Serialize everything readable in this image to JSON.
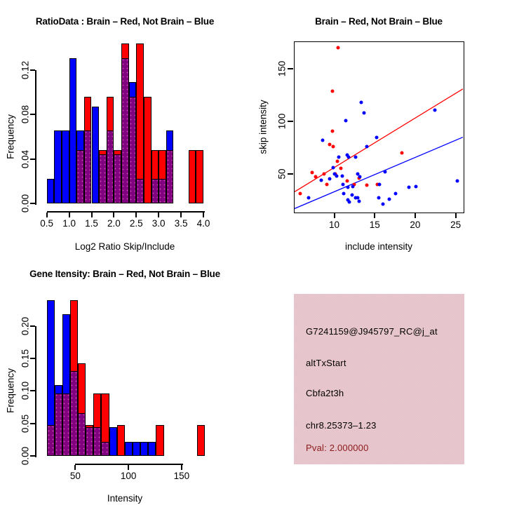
{
  "page": {
    "background": "#ffffff"
  },
  "colors": {
    "brain_red": "#ff0000",
    "not_brain_blue": "#0000ff",
    "overlap_purple": "#800080",
    "axis_black": "#000000",
    "info_box_pink": "#f1c7cf",
    "pval_dark_red": "#8b1a1a"
  },
  "chart_data": [
    {
      "id": "ratio-histogram",
      "type": "bar",
      "title": "RatioData : Brain – Red, Not Brain – Blue",
      "xlabel": "Log2 Ratio Skip/Include",
      "ylabel": "Frequency",
      "xlim": [
        0.5,
        4.0
      ],
      "ylim": [
        0,
        0.144
      ],
      "x_ticks": {
        "values": [
          0.5,
          1.0,
          1.5,
          2.0,
          2.5,
          3.0,
          3.5,
          4.0
        ],
        "labels": [
          "0.5",
          "1.0",
          "1.5",
          "2.0",
          "2.5",
          "3.0",
          "3.5",
          "4.0"
        ]
      },
      "y_ticks": {
        "values": [
          0,
          0.04,
          0.08,
          0.12
        ],
        "labels": [
          "0.00",
          "0.04",
          "0.08",
          "0.12"
        ]
      },
      "series_colors": {
        "brain": "#ff0000",
        "not_brain": "#0000ff",
        "overlap": "#800080"
      },
      "bars": [
        {
          "x0": 0.5,
          "x1": 0.667,
          "brain": 0.0,
          "not_brain": 0.022
        },
        {
          "x0": 0.667,
          "x1": 0.833,
          "brain": 0.0,
          "not_brain": 0.066
        },
        {
          "x0": 0.833,
          "x1": 1.0,
          "brain": 0.0,
          "not_brain": 0.066
        },
        {
          "x0": 1.0,
          "x1": 1.167,
          "brain": 0.0,
          "not_brain": 0.131
        },
        {
          "x0": 1.167,
          "x1": 1.333,
          "brain": 0.048,
          "not_brain": 0.066
        },
        {
          "x0": 1.333,
          "x1": 1.5,
          "brain": 0.096,
          "not_brain": 0.066
        },
        {
          "x0": 1.5,
          "x1": 1.667,
          "brain": 0.0,
          "not_brain": 0.087
        },
        {
          "x0": 1.667,
          "x1": 1.833,
          "brain": 0.048,
          "not_brain": 0.044
        },
        {
          "x0": 1.833,
          "x1": 2.0,
          "brain": 0.096,
          "not_brain": 0.066
        },
        {
          "x0": 2.0,
          "x1": 2.167,
          "brain": 0.048,
          "not_brain": 0.044
        },
        {
          "x0": 2.167,
          "x1": 2.333,
          "brain": 0.144,
          "not_brain": 0.131
        },
        {
          "x0": 2.333,
          "x1": 2.5,
          "brain": 0.096,
          "not_brain": 0.109
        },
        {
          "x0": 2.5,
          "x1": 2.667,
          "brain": 0.144,
          "not_brain": 0.022
        },
        {
          "x0": 2.667,
          "x1": 2.833,
          "brain": 0.096,
          "not_brain": 0.0
        },
        {
          "x0": 2.833,
          "x1": 3.0,
          "brain": 0.048,
          "not_brain": 0.022
        },
        {
          "x0": 3.0,
          "x1": 3.167,
          "brain": 0.048,
          "not_brain": 0.022
        },
        {
          "x0": 3.167,
          "x1": 3.333,
          "brain": 0.048,
          "not_brain": 0.066
        },
        {
          "x0": 3.667,
          "x1": 3.833,
          "brain": 0.048,
          "not_brain": 0.0
        },
        {
          "x0": 3.833,
          "x1": 4.0,
          "brain": 0.048,
          "not_brain": 0.0
        }
      ]
    },
    {
      "id": "intensity-scatter",
      "type": "scatter",
      "title": "Brain – Red, Not Brain – Blue",
      "xlabel": "include intensity",
      "ylabel": "skip intensity",
      "xlim": [
        5.1,
        25.9
      ],
      "ylim": [
        13.9,
        175.6
      ],
      "x_ticks": {
        "values": [
          10,
          15,
          20,
          25
        ],
        "labels": [
          "10",
          "15",
          "20",
          "25"
        ]
      },
      "y_ticks": {
        "values": [
          50,
          100,
          150
        ],
        "labels": [
          "50",
          "100",
          "150"
        ]
      },
      "series": [
        {
          "name": "brain",
          "color": "#ff0000",
          "points": [
            [
              10.5,
              170
            ],
            [
              9.8,
              129
            ],
            [
              9.8,
              91
            ],
            [
              9.4,
              78
            ],
            [
              9.9,
              76
            ],
            [
              10.4,
              62
            ],
            [
              18.4,
              70
            ],
            [
              10.8,
              55
            ],
            [
              10.1,
              50
            ],
            [
              7.3,
              51
            ],
            [
              7.7,
              47
            ],
            [
              8.7,
              50
            ],
            [
              9.1,
              40
            ],
            [
              11.6,
              43
            ],
            [
              12.5,
              40
            ],
            [
              13.1,
              46
            ],
            [
              14.0,
              39
            ],
            [
              15.3,
              40
            ],
            [
              5.8,
              31
            ]
          ]
        },
        {
          "name": "not_brain",
          "color": "#0000ff",
          "points": [
            [
              13.3,
              118
            ],
            [
              13.7,
              108
            ],
            [
              11.4,
              101
            ],
            [
              22.4,
              111
            ],
            [
              8.6,
              82
            ],
            [
              15.2,
              85
            ],
            [
              14.0,
              76
            ],
            [
              10.6,
              66
            ],
            [
              11.6,
              68
            ],
            [
              11.8,
              66
            ],
            [
              12.6,
              66
            ],
            [
              9.9,
              56
            ],
            [
              10.0,
              50
            ],
            [
              9.4,
              45
            ],
            [
              10.3,
              48
            ],
            [
              11.0,
              48
            ],
            [
              16.3,
              52
            ],
            [
              12.9,
              50
            ],
            [
              13.2,
              47
            ],
            [
              8.4,
              44
            ],
            [
              11.1,
              40
            ],
            [
              11.7,
              37
            ],
            [
              12.3,
              38
            ],
            [
              15.6,
              40
            ],
            [
              19.2,
              37
            ],
            [
              20.1,
              38
            ],
            [
              25.2,
              43
            ],
            [
              11.2,
              31
            ],
            [
              12.2,
              30
            ],
            [
              17.6,
              31
            ],
            [
              6.8,
              27
            ],
            [
              11.7,
              25
            ],
            [
              12.6,
              27
            ],
            [
              12.9,
              27
            ],
            [
              13.1,
              24
            ],
            [
              15.5,
              27
            ],
            [
              16.8,
              26
            ],
            [
              11.9,
              23
            ],
            [
              16.0,
              21
            ]
          ]
        }
      ],
      "fit_lines": [
        {
          "name": "brain-fit",
          "color": "#ff0000",
          "from": [
            5.1,
            33
          ],
          "to": [
            25.9,
            131
          ]
        },
        {
          "name": "not-brain-fit",
          "color": "#0000ff",
          "from": [
            5.1,
            17
          ],
          "to": [
            25.9,
            85
          ]
        }
      ]
    },
    {
      "id": "gene-intensity-histogram",
      "type": "bar",
      "title": "Gene Itensity: Brain – Red, Not Brain – Blue",
      "xlabel": "Intensity",
      "ylabel": "Frequency",
      "xlim": [
        23,
        172
      ],
      "ylim": [
        0,
        0.24
      ],
      "x_ticks": {
        "values": [
          50,
          100,
          150
        ],
        "labels": [
          "50",
          "100",
          "150"
        ]
      },
      "y_ticks": {
        "values": [
          0,
          0.05,
          0.1,
          0.15,
          0.2
        ],
        "labels": [
          "0.00",
          "0.05",
          "0.10",
          "0.15",
          "0.20"
        ]
      },
      "series_colors": {
        "brain": "#ff0000",
        "not_brain": "#0000ff",
        "overlap": "#800080"
      },
      "bars": [
        {
          "x0": 23.0,
          "x1": 30.35,
          "brain": 0.048,
          "not_brain": 0.24
        },
        {
          "x0": 30.35,
          "x1": 37.7,
          "brain": 0.096,
          "not_brain": 0.109
        },
        {
          "x0": 37.7,
          "x1": 45.05,
          "brain": 0.096,
          "not_brain": 0.218
        },
        {
          "x0": 45.05,
          "x1": 52.4,
          "brain": 0.24,
          "not_brain": 0.131
        },
        {
          "x0": 52.4,
          "x1": 59.75,
          "brain": 0.143,
          "not_brain": 0.066
        },
        {
          "x0": 59.75,
          "x1": 67.1,
          "brain": 0.048,
          "not_brain": 0.044
        },
        {
          "x0": 67.1,
          "x1": 74.45,
          "brain": 0.096,
          "not_brain": 0.044
        },
        {
          "x0": 74.45,
          "x1": 81.8,
          "brain": 0.096,
          "not_brain": 0.022
        },
        {
          "x0": 81.8,
          "x1": 89.15,
          "brain": 0.0,
          "not_brain": 0.044
        },
        {
          "x0": 89.15,
          "x1": 96.5,
          "brain": 0.048,
          "not_brain": 0.0
        },
        {
          "x0": 96.5,
          "x1": 103.85,
          "brain": 0.0,
          "not_brain": 0.022
        },
        {
          "x0": 103.85,
          "x1": 111.2,
          "brain": 0.0,
          "not_brain": 0.022
        },
        {
          "x0": 111.2,
          "x1": 118.55,
          "brain": 0.0,
          "not_brain": 0.022
        },
        {
          "x0": 118.55,
          "x1": 125.9,
          "brain": 0.0,
          "not_brain": 0.022
        },
        {
          "x0": 125.9,
          "x1": 133.25,
          "brain": 0.048,
          "not_brain": 0.0
        },
        {
          "x0": 164.6,
          "x1": 172.0,
          "brain": 0.048,
          "not_brain": 0.0
        }
      ]
    }
  ],
  "info_box": {
    "lines": [
      "G7241159@J945797_RC@j_at",
      "altTxStart",
      "Cbfa2t3h",
      "chr8.25373–1.23"
    ],
    "pval": "Pval: 2.000000"
  }
}
